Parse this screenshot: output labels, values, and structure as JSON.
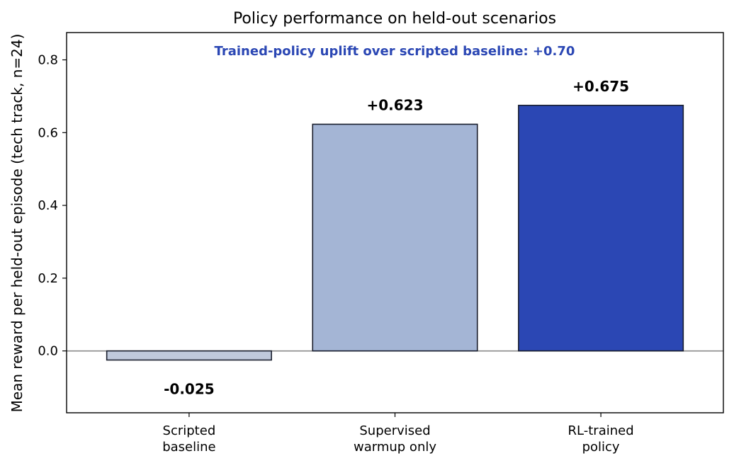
{
  "chart_data": {
    "type": "bar",
    "title": "Policy performance on held-out scenarios",
    "annotation": "Trained-policy uplift over scripted baseline: +0.70",
    "ylabel": "Mean reward per held-out episode (tech track, n=24)",
    "xlabel": "",
    "ylim": [
      -0.17,
      0.875
    ],
    "yticks": [
      {
        "value": 0.0,
        "label": "0.0"
      },
      {
        "value": 0.2,
        "label": "0.2"
      },
      {
        "value": 0.4,
        "label": "0.4"
      },
      {
        "value": 0.6,
        "label": "0.6"
      },
      {
        "value": 0.8,
        "label": "0.8"
      }
    ],
    "grid": false,
    "legend": "none",
    "bars": [
      {
        "category_lines": [
          "Scripted",
          "baseline"
        ],
        "value": -0.025,
        "label": "-0.025",
        "color": "#bfc9dc"
      },
      {
        "category_lines": [
          "Supervised",
          "warmup only"
        ],
        "value": 0.623,
        "label": "+0.623",
        "color": "#a4b5d5"
      },
      {
        "category_lines": [
          "RL-trained",
          "policy"
        ],
        "value": 0.675,
        "label": "+0.675",
        "color": "#2b47b4"
      }
    ],
    "colors": {
      "annotation": "#2b47b4",
      "bar_edge": "#1a1f2e",
      "zero_line": "#8a8a8a",
      "axis": "#000000"
    }
  }
}
